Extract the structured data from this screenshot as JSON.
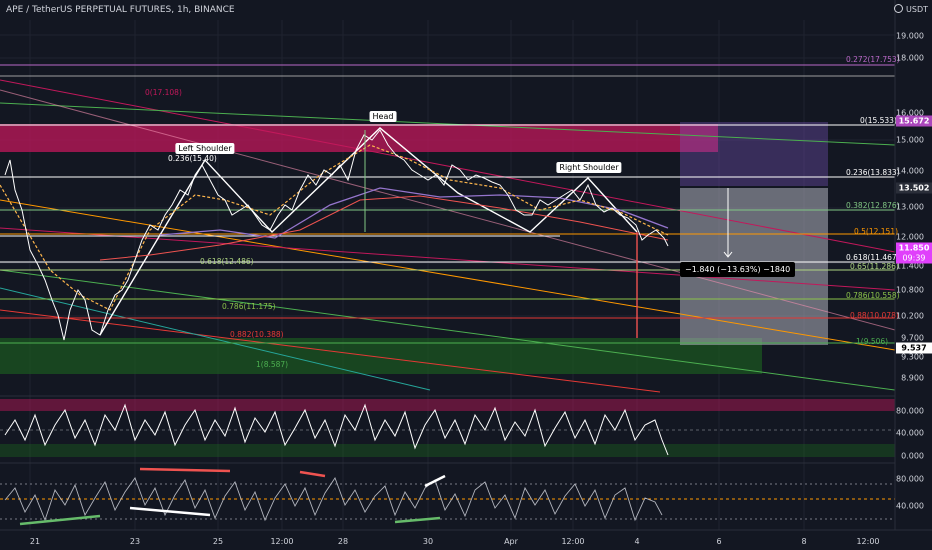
{
  "header": {
    "title": "APE / TetherUS PERPETUAL FUTURES, 1h, BINANCE",
    "currency": "USDT"
  },
  "price_axis": [
    "19.000",
    "18.000",
    "16.000",
    "15.000",
    "14.000",
    "13.000",
    "12.000",
    "11.400",
    "10.800",
    "10.200",
    "9.700",
    "9.300",
    "8.900"
  ],
  "price_tags": {
    "upper_box": "15.672",
    "target": "13.502",
    "current": "11.850",
    "countdown": "09:39",
    "lower": "9.537"
  },
  "oscillator1_axis": [
    "80.000",
    "40.000",
    "0.000"
  ],
  "oscillator2_axis": [
    "80.000",
    "40.000"
  ],
  "time_axis": [
    "21",
    "23",
    "25",
    "12:00",
    "28",
    "30",
    "Apr",
    "12:00",
    "4",
    "6",
    "8",
    "12:00"
  ],
  "pattern_labels": {
    "left_shoulder": "Left Shoulder",
    "head": "Head",
    "right_shoulder": "Right Shoulder"
  },
  "fib_levels_right": [
    "0.272(17.753)",
    "0(15.533)",
    "0.236(13.833)",
    "0.382(12.876)",
    "0.5(12.151)",
    "0.618(11.467)",
    "0.65(11.286)",
    "0.786(10.558)",
    "0.88(10.078)",
    "1(9.506)"
  ],
  "fib_levels_left": [
    "0(17.108)",
    "0.236(15.40)",
    "0.618(12.486)",
    "0.786(11.175)",
    "0.882(10.388)",
    "1(8.587)"
  ],
  "measure_label": "−1.840 (−13.63%) −1840",
  "colors": {
    "background": "#131722",
    "up_candle": "#ffffff",
    "down_candle": "#c43bd6",
    "resistance_zone": "#c2185b",
    "support_zone": "#1b5e20",
    "current_price": "#e040fb",
    "orange": "#ff9800"
  }
}
